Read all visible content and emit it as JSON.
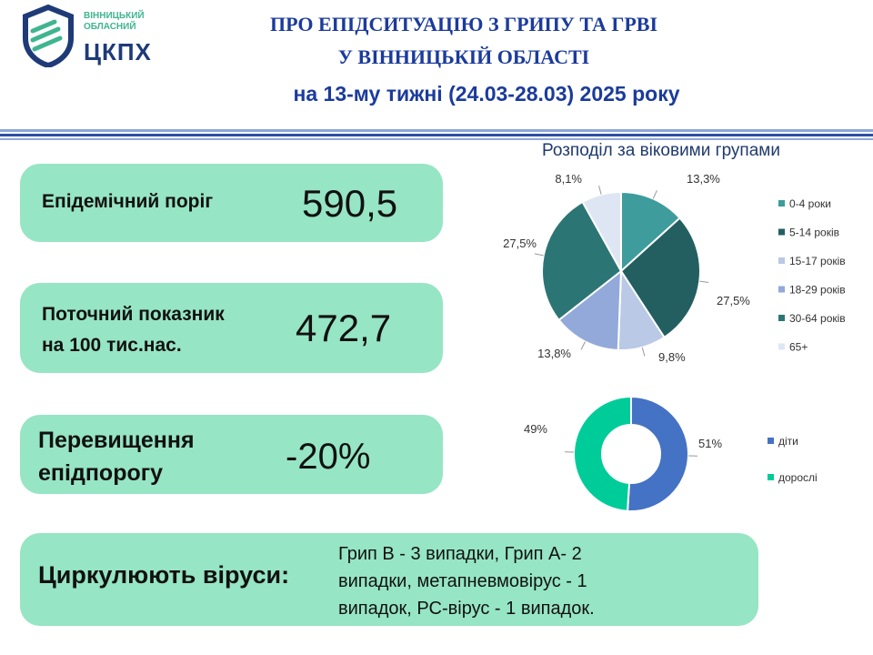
{
  "logo": {
    "line1": "ВІННИЦЬКИЙ",
    "line2": "ОБЛАСНИЙ",
    "abbr": "ЦКПХ"
  },
  "header": {
    "title_line1": "ПРО ЕПІДСИТУАЦІЮ З ГРИПУ ТА ГРВІ",
    "title_line2": "У ВІННИЦЬКІЙ ОБЛАСТІ",
    "title_line3": "на 13-му тижні (24.03-28.03) 2025 року"
  },
  "cards": {
    "threshold": {
      "label": "Епідемічний поріг",
      "value": "590,5"
    },
    "current": {
      "label_line1": "Поточний показник",
      "label_line2": "на 100 тис.нас.",
      "value": "472,7"
    },
    "excess": {
      "label_line1": "Перевищення",
      "label_line2": "епідпорогу",
      "value": "-20%"
    },
    "viruses": {
      "label": "Циркулюють віруси:",
      "text_line1": "Грип В - 3 випадки, Грип А- 2",
      "text_line2": "випадки, метапневмовірус - 1",
      "text_line3": "випадок, РС-вірус - 1 випадок."
    }
  },
  "colors": {
    "card_bg": "#96e5c4",
    "title": "#1b3b9c"
  },
  "chart_data": [
    {
      "type": "pie",
      "title": "Розподіл за віковими групами",
      "categories": [
        "0-4 роки",
        "5-14 років",
        "15-17 років",
        "18-29 років",
        "30-64 років",
        "65+"
      ],
      "values": [
        13.3,
        27.5,
        9.8,
        13.8,
        27.5,
        8.1
      ],
      "labels": [
        "13,3%",
        "27,5%",
        "9,8%",
        "13,8%",
        "27,5%",
        "8,1%"
      ],
      "colors": [
        "#3e9c9c",
        "#235f60",
        "#b9c9e6",
        "#92a9da",
        "#2c7575",
        "#dfe6f3"
      ],
      "legend": "right"
    },
    {
      "type": "pie",
      "categories": [
        "діти",
        "дорослі"
      ],
      "values": [
        51,
        49
      ],
      "labels": [
        "51%",
        "49%"
      ],
      "colors": [
        "#4472c4",
        "#00cc99"
      ],
      "legend": "right"
    }
  ]
}
